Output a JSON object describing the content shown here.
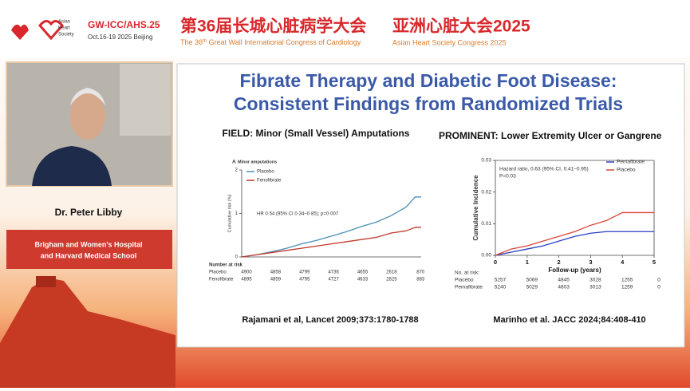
{
  "header": {
    "society_name": [
      "Asian",
      "Heart",
      "Society"
    ],
    "event_code": "GW-ICC/AHS.25",
    "event_dates": "Oct.16-19 2025 Beijing",
    "title_cn_left": "第36届长城心脏病学大会",
    "title_cn_right": "亚洲心脏大会2025",
    "subtitle_left": {
      "prefix": "The 36",
      "superscript": "th",
      "suffix": " Great Wall International Congress of Cardiology"
    },
    "subtitle_right": "Asian Heart Society Congress 2025"
  },
  "speaker": {
    "name": "Dr. Peter Libby",
    "affiliation": [
      "Brigham and Women's Hospital",
      "and Harvard Medical School"
    ]
  },
  "slide": {
    "title": [
      "Fibrate Therapy and Diabetic Foot Disease:",
      "Consistent Findings from Randomized Trials"
    ],
    "panels": [
      {
        "heading": "FIELD: Minor (Small Vessel) Amputations",
        "chart": {
          "type": "line",
          "panel_label": "A",
          "title": "Minor amputations",
          "ylabel": "Cumulative risk (%)",
          "xlim": [
            0,
            6
          ],
          "ylim": [
            0,
            2
          ],
          "yticks": [
            0,
            1,
            2
          ],
          "series": [
            {
              "name": "Placebo",
              "color": "#4a8fb5",
              "x": [
                0,
                0.5,
                1,
                1.5,
                2,
                2.5,
                3,
                3.5,
                4,
                4.5,
                5,
                5.5,
                5.8,
                6
              ],
              "values": [
                0,
                0.05,
                0.12,
                0.2,
                0.3,
                0.38,
                0.48,
                0.58,
                0.7,
                0.8,
                0.95,
                1.15,
                1.38,
                1.38
              ]
            },
            {
              "name": "Fenofibrate",
              "color": "#c0392b",
              "x": [
                0,
                0.5,
                1,
                1.5,
                2,
                2.5,
                3,
                3.5,
                4,
                4.5,
                5,
                5.5,
                5.8,
                6
              ],
              "values": [
                0,
                0.05,
                0.1,
                0.15,
                0.2,
                0.25,
                0.3,
                0.35,
                0.4,
                0.45,
                0.55,
                0.6,
                0.68,
                0.68
              ]
            }
          ],
          "annotation": [
            "HR 0·54 (95% CI 0·34–0·85); p=0·007"
          ],
          "risk_table": {
            "label": "Number at risk",
            "rows": [
              {
                "name": "Placebo",
                "values": [
                  4900,
                  4858,
                  4799,
                  4736,
                  4655,
                  2618,
                  870
                ]
              },
              {
                "name": "Fenofibrate",
                "values": [
                  4895,
                  4859,
                  4795,
                  4727,
                  4633,
                  2625,
                  883
                ]
              }
            ]
          }
        },
        "citation": "Rajamani et al, Lancet 2009;373:1780-1788"
      },
      {
        "heading": "PROMINENT: Lower Extremity Ulcer or Gangrene",
        "chart": {
          "type": "line",
          "ylabel": "Cumulative Incidence",
          "xlabel": "Follow-up (years)",
          "xlim": [
            0,
            5
          ],
          "ylim": [
            0,
            0.03
          ],
          "xticks": [
            0,
            1,
            2,
            3,
            4,
            5
          ],
          "yticks": [
            {
              "value": 0,
              "label": "0.00"
            },
            0.01,
            0.02,
            0.03
          ],
          "series": [
            {
              "name": "Pemafibrate",
              "color": "#2b3fc4",
              "x": [
                0,
                0.25,
                0.5,
                1,
                1.5,
                2,
                2.5,
                3,
                3.5,
                4,
                4.5,
                5
              ],
              "values": [
                0,
                0.0005,
                0.001,
                0.002,
                0.003,
                0.0045,
                0.006,
                0.007,
                0.0075,
                0.0075,
                0.0075,
                0.0075
              ]
            },
            {
              "name": "Placebo",
              "color": "#d9453b",
              "x": [
                0,
                0.25,
                0.5,
                1,
                1.5,
                2,
                2.5,
                3,
                3.5,
                4,
                4.5,
                5
              ],
              "values": [
                0,
                0.001,
                0.002,
                0.003,
                0.0045,
                0.006,
                0.0075,
                0.0095,
                0.011,
                0.0135,
                0.0135,
                0.0135
              ]
            }
          ],
          "annotation": [
            "Hazard ratio, 0.63 (95% CI, 0.41–0.95)",
            "P=0.03"
          ],
          "risk_table": {
            "label": "No. at risk:",
            "rows": [
              {
                "name": "Placebo",
                "values": [
                  5257,
                  5069,
                  4845,
                  3028,
                  1255,
                  0
                ]
              },
              {
                "name": "Pemafibrate",
                "values": [
                  5240,
                  5029,
                  4803,
                  3013,
                  1259,
                  0
                ]
              }
            ]
          }
        },
        "citation": "Marinho et al. JACC 2024;84:408-410"
      }
    ]
  }
}
